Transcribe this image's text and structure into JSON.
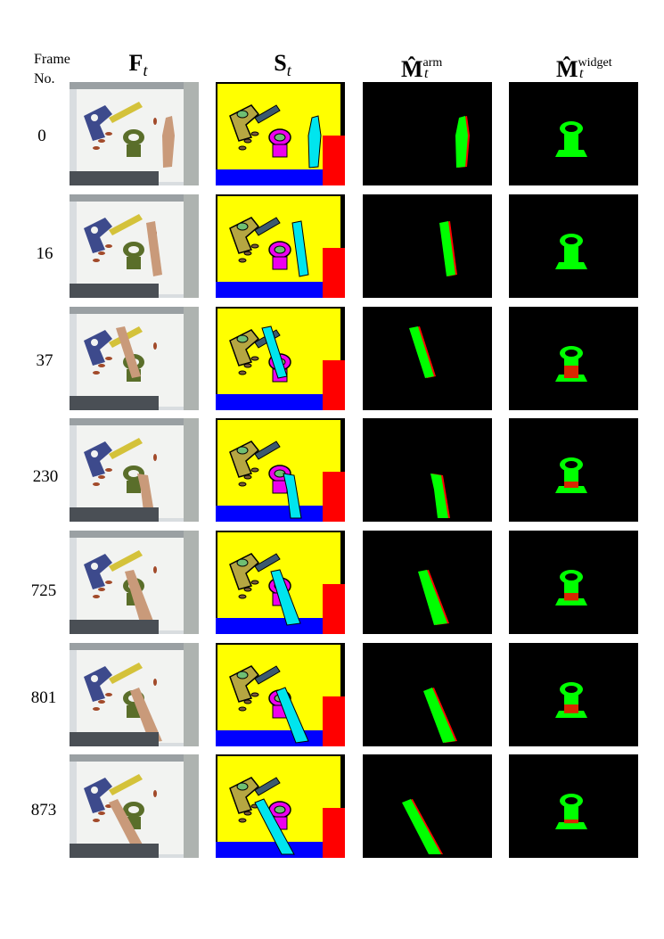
{
  "header": {
    "frame_line1": "Frame",
    "frame_line2": "No.",
    "col_frame": "F",
    "col_frame_sub": "t",
    "col_seg": "S",
    "col_seg_sub": "t",
    "col_arm": "M̂",
    "col_arm_sub": "t",
    "col_arm_sup": "arm",
    "col_widget": "M̂",
    "col_widget_sub": "t",
    "col_widget_sup": "widget"
  },
  "rows": [
    {
      "frame_no": "0"
    },
    {
      "frame_no": "16"
    },
    {
      "frame_no": "37"
    },
    {
      "frame_no": "230"
    },
    {
      "frame_no": "725"
    },
    {
      "frame_no": "801"
    },
    {
      "frame_no": "873"
    }
  ],
  "colors": {
    "seg_yellow": "#ffff00",
    "seg_blue": "#0000ff",
    "seg_red": "#ff0000",
    "seg_cyan": "#00e5ee",
    "seg_green": "#00dd00",
    "seg_magenta": "#ee00ee",
    "seg_olive": "#b5a642",
    "mask_green": "#00ff00",
    "mask_red": "#ff0000"
  }
}
